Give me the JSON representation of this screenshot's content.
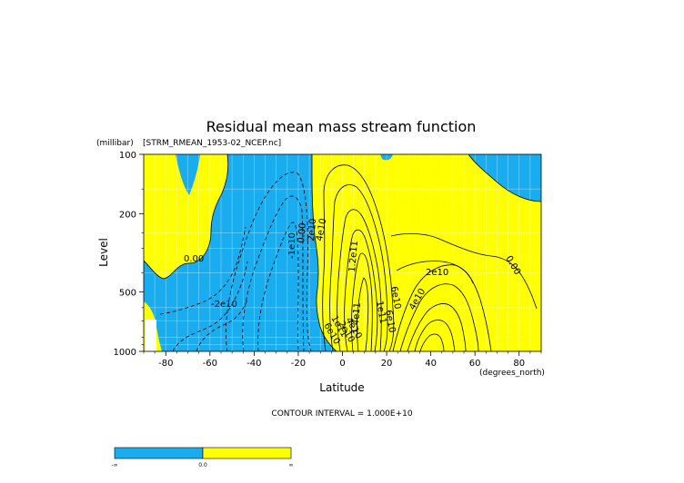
{
  "chart_data": {
    "type": "contour",
    "title": "Residual mean mass stream function",
    "dataset": "[STRM_RMEAN_1953-02_NCEP.nc]",
    "xlabel": "Latitude",
    "xunits": "(degrees_north)",
    "ylabel": "Level",
    "yunits": "(millibar)",
    "xlim": [
      -90,
      90
    ],
    "ylim": [
      1000,
      100
    ],
    "yscale": "log",
    "xticks": [
      "-80",
      "-60",
      "-40",
      "-20",
      "0",
      "20",
      "40",
      "60",
      "80"
    ],
    "yticks": [
      "100",
      "200",
      "500",
      "1000"
    ],
    "grid": true,
    "contour_interval_text": "CONTOUR INTERVAL = 1.000E+10",
    "contour_labels": [
      "0.00",
      "-2e10",
      "-1e10",
      "0.00",
      "2e10",
      "4e10",
      "6e10",
      "1e11",
      "1.2e11",
      "1.4e11",
      "2e10",
      "4e10",
      "6e10",
      "1e11",
      "6e10",
      "4e10",
      "2e10",
      "0.00"
    ],
    "colorbar": {
      "labels": [
        "-∞",
        "0.0",
        "∞"
      ],
      "colors": [
        "#00aaff",
        "#ffff00"
      ]
    },
    "colors": {
      "negative": "#19adf0",
      "positive": "#ffff00"
    }
  }
}
